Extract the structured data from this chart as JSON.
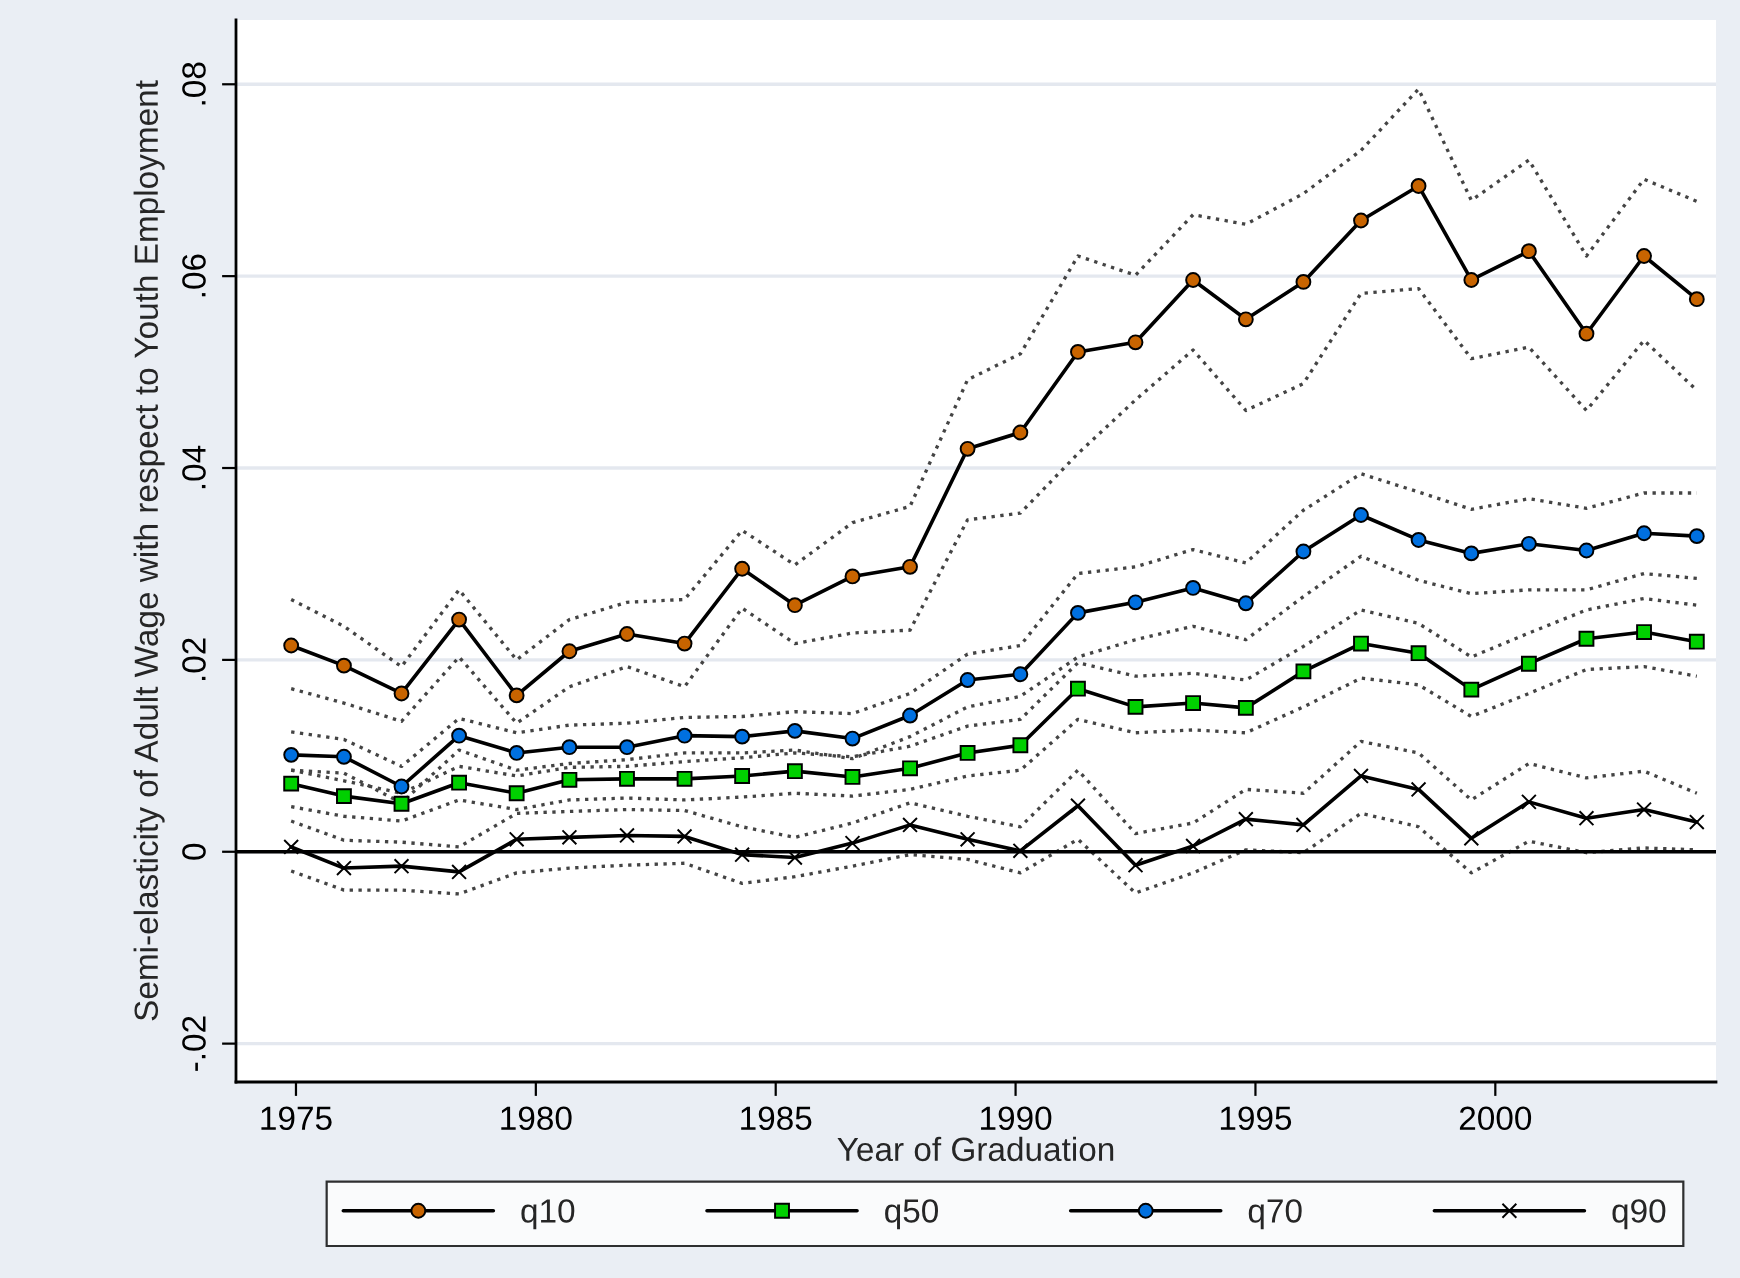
{
  "chart_data": {
    "type": "line",
    "xlabel": "Year of Graduation",
    "ylabel": "Semi-elasticity of Adult Wage with respect to Youth Employment",
    "x": [
      1974.9,
      1976.0,
      1977.2,
      1978.4,
      1979.6,
      1980.7,
      1981.9,
      1983.1,
      1984.3,
      1985.4,
      1986.6,
      1987.8,
      1989.0,
      1990.1,
      1991.3,
      1992.5,
      1993.7,
      1994.8,
      1996.0,
      1997.2,
      1998.4,
      1999.5,
      2000.7,
      2001.9,
      2003.1,
      2004.2
    ],
    "xlim": [
      1973.75,
      2004.6
    ],
    "xticks": [
      1975,
      1980,
      1985,
      1990,
      1995,
      2000
    ],
    "ylim": [
      -0.024,
      0.0867
    ],
    "yticks": [
      {
        "value": -0.02,
        "label": "-.02"
      },
      {
        "value": 0,
        "label": "0"
      },
      {
        "value": 0.02,
        "label": ".02"
      },
      {
        "value": 0.04,
        "label": ".04"
      },
      {
        "value": 0.06,
        "label": ".06"
      },
      {
        "value": 0.08,
        "label": ".08"
      }
    ],
    "grid": "y",
    "legend": "bottom",
    "line_style": "solid",
    "ref_lines": [
      {
        "axis": "y",
        "value": 0,
        "label": null,
        "color": "#000000",
        "line_style": "solid"
      }
    ],
    "series": [
      {
        "name": "q10",
        "color": "#c86400",
        "marker": "circle",
        "values": [
          0.0215,
          0.0194,
          0.0165,
          0.0242,
          0.0163,
          0.0209,
          0.0227,
          0.0217,
          0.0295,
          0.0257,
          0.0287,
          0.0297,
          0.042,
          0.0437,
          0.0521,
          0.0531,
          0.0596,
          0.0555,
          0.0594,
          0.0658,
          0.0694,
          0.0596,
          0.0626,
          0.054,
          0.0621,
          0.0576
        ]
      },
      {
        "name": "q50",
        "color": "#00d000",
        "marker": "square",
        "values": [
          0.0071,
          0.0058,
          0.005,
          0.0072,
          0.0061,
          0.0075,
          0.0076,
          0.0076,
          0.0079,
          0.0084,
          0.0078,
          0.0087,
          0.0103,
          0.0111,
          0.017,
          0.0151,
          0.0155,
          0.015,
          0.0188,
          0.0217,
          0.0207,
          0.0169,
          0.0196,
          0.0222,
          0.0229,
          0.0219
        ]
      },
      {
        "name": "q70",
        "color": "#0070e0",
        "marker": "circle",
        "values": [
          0.0101,
          0.0099,
          0.0068,
          0.0121,
          0.0103,
          0.0109,
          0.0109,
          0.0121,
          0.012,
          0.0126,
          0.0118,
          0.0142,
          0.0179,
          0.0185,
          0.0249,
          0.026,
          0.0275,
          0.0259,
          0.0313,
          0.0351,
          0.0325,
          0.0311,
          0.0321,
          0.0314,
          0.0332,
          0.0329
        ]
      },
      {
        "name": "q90",
        "color": "#000000",
        "marker": "cross",
        "values": [
          0.0005,
          -0.0017,
          -0.0015,
          -0.0021,
          0.0013,
          0.0015,
          0.0017,
          0.0016,
          -0.0003,
          -0.0006,
          0.0009,
          0.0028,
          0.0013,
          0.0001,
          0.0048,
          -0.0014,
          0.0006,
          0.0034,
          0.0028,
          0.0079,
          0.0065,
          0.0014,
          0.0052,
          0.0035,
          0.0044,
          0.0031
        ]
      },
      {
        "color": "#444444",
        "marker": "none",
        "line_style": "dotted",
        "values": [
          0.0263,
          0.0235,
          0.0193,
          0.0273,
          0.02,
          0.0242,
          0.026,
          0.0263,
          0.0335,
          0.0299,
          0.0343,
          0.036,
          0.0492,
          0.0519,
          0.0621,
          0.0601,
          0.0664,
          0.0654,
          0.0686,
          0.0731,
          0.0795,
          0.0679,
          0.0721,
          0.0621,
          0.0701,
          0.0678
        ]
      },
      {
        "color": "#444444",
        "marker": "none",
        "line_style": "dotted",
        "values": [
          0.017,
          0.0155,
          0.0136,
          0.0203,
          0.0134,
          0.0172,
          0.0193,
          0.0172,
          0.0254,
          0.0217,
          0.0228,
          0.0231,
          0.0346,
          0.0353,
          0.0415,
          0.0471,
          0.0523,
          0.046,
          0.0488,
          0.0582,
          0.0587,
          0.0514,
          0.0526,
          0.046,
          0.0533,
          0.0481
        ]
      },
      {
        "color": "#444444",
        "marker": "none",
        "line_style": "dotted",
        "values": [
          0.0085,
          0.0074,
          0.0061,
          0.0089,
          0.0079,
          0.0088,
          0.0089,
          0.0094,
          0.0098,
          0.0103,
          0.0099,
          0.011,
          0.0131,
          0.0138,
          0.0197,
          0.0183,
          0.0186,
          0.0179,
          0.0214,
          0.0252,
          0.0238,
          0.0203,
          0.0228,
          0.0252,
          0.0264,
          0.0257
        ]
      },
      {
        "color": "#444444",
        "marker": "none",
        "line_style": "dotted",
        "values": [
          0.0047,
          0.0037,
          0.0032,
          0.0054,
          0.0044,
          0.0054,
          0.0056,
          0.0054,
          0.0057,
          0.0061,
          0.0058,
          0.0065,
          0.0079,
          0.0085,
          0.0138,
          0.0124,
          0.0127,
          0.0124,
          0.0151,
          0.0181,
          0.0174,
          0.0141,
          0.0165,
          0.019,
          0.0193,
          0.0183
        ]
      },
      {
        "color": "#444444",
        "marker": "none",
        "line_style": "dotted",
        "values": [
          0.0125,
          0.0117,
          0.0089,
          0.0139,
          0.0124,
          0.0132,
          0.0134,
          0.014,
          0.0141,
          0.0146,
          0.0144,
          0.0165,
          0.0206,
          0.0215,
          0.029,
          0.0297,
          0.0315,
          0.0301,
          0.0356,
          0.0394,
          0.0375,
          0.0357,
          0.0368,
          0.0358,
          0.0374,
          0.0374
        ]
      },
      {
        "color": "#444444",
        "marker": "none",
        "line_style": "dotted",
        "values": [
          0.0085,
          0.0082,
          0.0051,
          0.0106,
          0.0085,
          0.0092,
          0.0096,
          0.0103,
          0.0103,
          0.0106,
          0.0097,
          0.012,
          0.0151,
          0.0162,
          0.0203,
          0.0221,
          0.0235,
          0.0221,
          0.0266,
          0.0308,
          0.0283,
          0.0269,
          0.0273,
          0.0273,
          0.029,
          0.0285
        ]
      },
      {
        "color": "#444444",
        "marker": "none",
        "line_style": "dotted",
        "values": [
          0.0032,
          0.0012,
          0.001,
          0.0005,
          0.004,
          0.0042,
          0.0044,
          0.0043,
          0.0026,
          0.0015,
          0.003,
          0.0051,
          0.0037,
          0.0026,
          0.0085,
          0.0019,
          0.003,
          0.0065,
          0.0061,
          0.0115,
          0.0103,
          0.0054,
          0.0092,
          0.0077,
          0.0084,
          0.0061
        ]
      },
      {
        "color": "#444444",
        "marker": "none",
        "line_style": "dotted",
        "values": [
          -0.002,
          -0.004,
          -0.004,
          -0.0044,
          -0.0022,
          -0.0017,
          -0.0014,
          -0.0012,
          -0.0033,
          -0.0026,
          -0.0015,
          -0.0003,
          -0.0008,
          -0.0022,
          0.0013,
          -0.0043,
          -0.0022,
          0.0002,
          -0.0001,
          0.004,
          0.0026,
          -0.0022,
          0.0011,
          -0.0001,
          0.0004,
          0.0002
        ]
      }
    ]
  }
}
